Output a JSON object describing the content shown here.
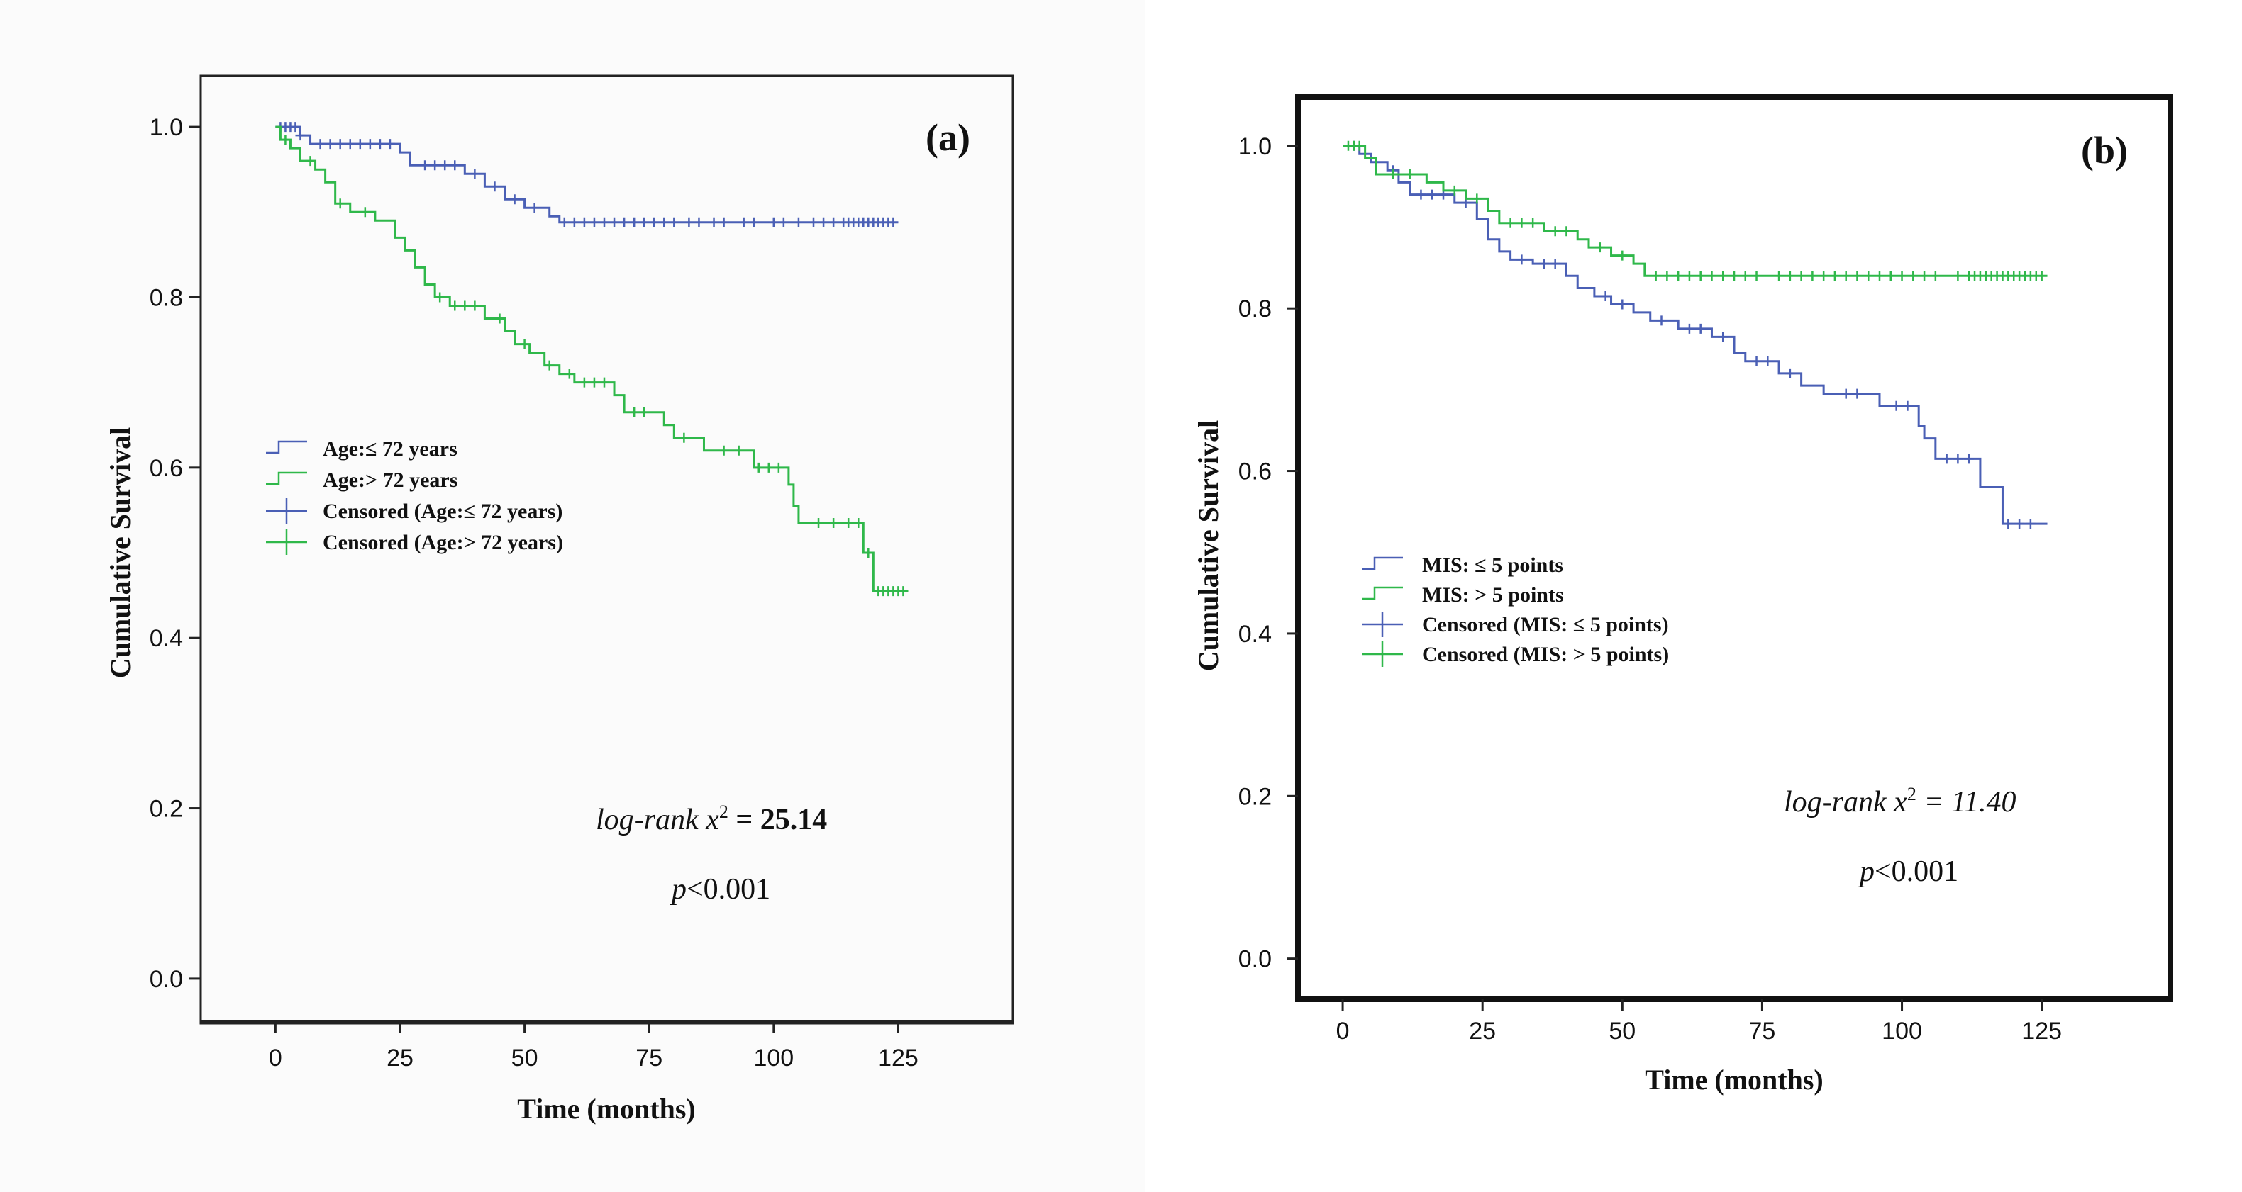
{
  "colors": {
    "blue": "#4a5fb5",
    "green": "#2fb84a",
    "axis": "#222222"
  },
  "chart_data": [
    {
      "type": "line",
      "subtype": "kaplan-meier",
      "panel_label": "(a)",
      "xlabel": "Time (months)",
      "ylabel": "Cumulative Survival",
      "xlim": [
        -15,
        148
      ],
      "ylim": [
        -0.05,
        1.06
      ],
      "xticks": [
        "0",
        "25",
        "50",
        "75",
        "100",
        "125"
      ],
      "yticks": [
        "0.0",
        "0.2",
        "0.4",
        "0.6",
        "0.8",
        "1.0"
      ],
      "stat": {
        "prefix": "log-rank ",
        "var": "x",
        "sup": "2",
        "value": " = 25.14",
        "p_var": "p",
        "p_value": "<0.001"
      },
      "legend": [
        {
          "label": "Age:≤ 72 years",
          "kind": "line",
          "color": "blue"
        },
        {
          "label": "Age:> 72 years",
          "kind": "line",
          "color": "green"
        },
        {
          "label": "Censored (Age:≤ 72 years)",
          "kind": "censor",
          "color": "blue"
        },
        {
          "label": "Censored (Age:> 72 years)",
          "kind": "censor",
          "color": "green"
        }
      ],
      "series": [
        {
          "name": "Age:≤ 72 years",
          "color": "blue",
          "steps": [
            [
              0,
              1.0
            ],
            [
              5,
              0.99
            ],
            [
              7,
              0.98
            ],
            [
              25,
              0.97
            ],
            [
              27,
              0.955
            ],
            [
              38,
              0.945
            ],
            [
              42,
              0.93
            ],
            [
              46,
              0.915
            ],
            [
              50,
              0.905
            ],
            [
              55,
              0.895
            ],
            [
              57,
              0.888
            ]
          ],
          "end_x": 125,
          "censored": [
            1,
            2,
            3,
            4,
            5,
            9,
            11,
            13,
            15,
            17,
            19,
            21,
            23,
            30,
            32,
            34,
            36,
            40,
            44,
            48,
            52,
            58,
            60,
            62,
            64,
            66,
            68,
            70,
            72,
            74,
            76,
            78,
            80,
            83,
            85,
            88,
            90,
            94,
            96,
            100,
            102,
            105,
            108,
            110,
            112,
            114,
            115,
            116,
            117,
            118,
            119,
            120,
            121,
            122,
            123,
            124
          ]
        },
        {
          "name": "Age:> 72 years",
          "color": "green",
          "steps": [
            [
              0,
              1.0
            ],
            [
              1,
              0.985
            ],
            [
              3,
              0.975
            ],
            [
              5,
              0.96
            ],
            [
              8,
              0.95
            ],
            [
              10,
              0.935
            ],
            [
              12,
              0.91
            ],
            [
              15,
              0.9
            ],
            [
              20,
              0.89
            ],
            [
              24,
              0.87
            ],
            [
              26,
              0.855
            ],
            [
              28,
              0.835
            ],
            [
              30,
              0.815
            ],
            [
              32,
              0.8
            ],
            [
              35,
              0.79
            ],
            [
              42,
              0.775
            ],
            [
              46,
              0.76
            ],
            [
              48,
              0.745
            ],
            [
              51,
              0.735
            ],
            [
              54,
              0.72
            ],
            [
              57,
              0.71
            ],
            [
              60,
              0.7
            ],
            [
              68,
              0.685
            ],
            [
              70,
              0.665
            ],
            [
              78,
              0.65
            ],
            [
              80,
              0.635
            ],
            [
              86,
              0.62
            ],
            [
              96,
              0.6
            ],
            [
              103,
              0.58
            ],
            [
              104,
              0.555
            ],
            [
              105,
              0.535
            ],
            [
              118,
              0.5
            ],
            [
              120,
              0.455
            ]
          ],
          "end_x": 127,
          "censored": [
            2,
            7,
            13,
            18,
            33,
            36,
            38,
            40,
            45,
            50,
            55,
            59,
            62,
            64,
            66,
            72,
            74,
            82,
            90,
            93,
            97,
            99,
            101,
            109,
            112,
            115,
            117,
            119,
            121,
            122,
            123,
            124,
            125,
            126
          ]
        }
      ]
    },
    {
      "type": "line",
      "subtype": "kaplan-meier",
      "panel_label": "(b)",
      "xlabel": "Time (months)",
      "ylabel": "Cumulative Survival",
      "xlim": [
        -8,
        148
      ],
      "ylim": [
        -0.05,
        1.06
      ],
      "xticks": [
        "0",
        "25",
        "50",
        "75",
        "100",
        "125"
      ],
      "yticks": [
        "0.0",
        "0.2",
        "0.4",
        "0.6",
        "0.8",
        "1.0"
      ],
      "stat": {
        "prefix": "log-rank ",
        "var": "x",
        "sup": "2",
        "value": " = 11.40",
        "p_var": "p",
        "p_value": "<0.001"
      },
      "legend": [
        {
          "label": "MIS: ≤ 5 points",
          "kind": "line",
          "color": "blue"
        },
        {
          "label": "MIS: > 5 points",
          "kind": "line",
          "color": "green"
        },
        {
          "label": "Censored (MIS: ≤ 5 points)",
          "kind": "censor",
          "color": "blue"
        },
        {
          "label": "Censored (MIS: > 5 points)",
          "kind": "censor",
          "color": "green"
        }
      ],
      "series": [
        {
          "name": "MIS: ≤ 5 points",
          "color": "blue",
          "steps": [
            [
              0,
              1.0
            ],
            [
              3,
              0.99
            ],
            [
              5,
              0.98
            ],
            [
              8,
              0.97
            ],
            [
              10,
              0.955
            ],
            [
              12,
              0.94
            ],
            [
              20,
              0.93
            ],
            [
              24,
              0.91
            ],
            [
              26,
              0.885
            ],
            [
              28,
              0.87
            ],
            [
              30,
              0.86
            ],
            [
              34,
              0.855
            ],
            [
              40,
              0.84
            ],
            [
              42,
              0.825
            ],
            [
              45,
              0.815
            ],
            [
              48,
              0.805
            ],
            [
              52,
              0.795
            ],
            [
              55,
              0.785
            ],
            [
              60,
              0.775
            ],
            [
              66,
              0.765
            ],
            [
              70,
              0.745
            ],
            [
              72,
              0.735
            ],
            [
              78,
              0.72
            ],
            [
              82,
              0.705
            ],
            [
              86,
              0.695
            ],
            [
              96,
              0.68
            ],
            [
              103,
              0.655
            ],
            [
              104,
              0.64
            ],
            [
              106,
              0.615
            ],
            [
              114,
              0.58
            ],
            [
              118,
              0.535
            ]
          ],
          "end_x": 126,
          "censored": [
            2,
            6,
            9,
            14,
            16,
            18,
            22,
            32,
            36,
            38,
            47,
            50,
            57,
            62,
            64,
            68,
            74,
            76,
            80,
            90,
            92,
            99,
            101,
            108,
            110,
            112,
            119,
            121,
            123
          ]
        },
        {
          "name": "MIS: > 5 points",
          "color": "green",
          "steps": [
            [
              0,
              1.0
            ],
            [
              4,
              0.985
            ],
            [
              6,
              0.965
            ],
            [
              15,
              0.955
            ],
            [
              18,
              0.945
            ],
            [
              22,
              0.935
            ],
            [
              26,
              0.92
            ],
            [
              28,
              0.905
            ],
            [
              36,
              0.895
            ],
            [
              42,
              0.885
            ],
            [
              44,
              0.875
            ],
            [
              48,
              0.865
            ],
            [
              52,
              0.855
            ],
            [
              54,
              0.84
            ]
          ],
          "end_x": 126,
          "censored": [
            1,
            2,
            3,
            9,
            12,
            20,
            24,
            30,
            32,
            34,
            38,
            40,
            46,
            50,
            56,
            58,
            60,
            62,
            64,
            66,
            68,
            70,
            72,
            74,
            78,
            80,
            82,
            84,
            86,
            88,
            90,
            92,
            94,
            96,
            98,
            100,
            102,
            104,
            106,
            110,
            112,
            113,
            114,
            115,
            116,
            117,
            118,
            119,
            120,
            121,
            122,
            123,
            124,
            125
          ]
        }
      ]
    }
  ]
}
